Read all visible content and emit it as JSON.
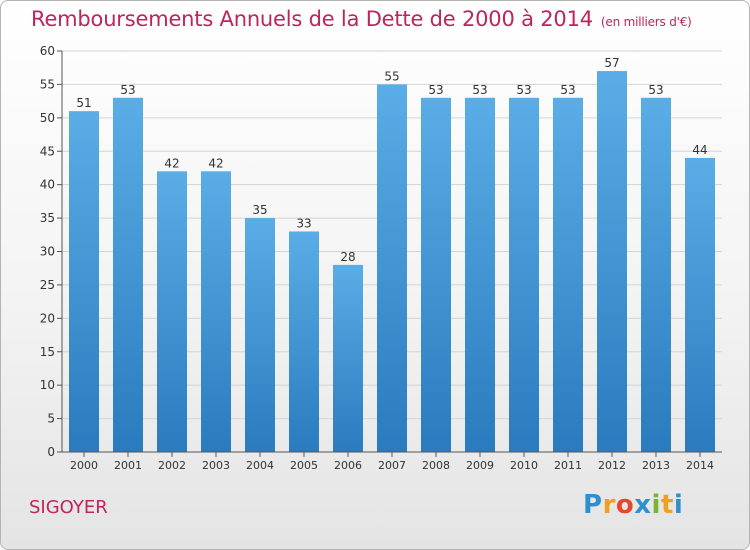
{
  "header": {
    "title": "Remboursements Annuels de la Dette de 2000 à 2014",
    "subtitle": "(en milliers d'€)"
  },
  "footer": {
    "commune": "SIGOYER",
    "brand": {
      "letters": [
        "P",
        "r",
        "o",
        "x",
        "i",
        "t",
        "i"
      ],
      "colors": [
        "#2e8fd0",
        "#f0a020",
        "#e8452c",
        "#2e8fd0",
        "#7ab52e",
        "#f0a020",
        "#2e8fd0"
      ]
    }
  },
  "colors": {
    "bar_light": "#5aade6",
    "bar_dark": "#2a7bbf",
    "grid": "#d4d4d4",
    "axis": "#555555",
    "text": "#333333"
  },
  "chart_data": {
    "type": "bar",
    "title": "Remboursements Annuels de la Dette de 2000 à 2014",
    "unit": "(en milliers d'€)",
    "categories": [
      "2000",
      "2001",
      "2002",
      "2003",
      "2004",
      "2005",
      "2006",
      "2007",
      "2008",
      "2009",
      "2010",
      "2011",
      "2012",
      "2013",
      "2014"
    ],
    "values": [
      51,
      53,
      42,
      42,
      35,
      33,
      28,
      55,
      53,
      53,
      53,
      53,
      57,
      53,
      44
    ],
    "ylim": [
      0,
      60
    ],
    "yticks": [
      0,
      5,
      10,
      15,
      20,
      25,
      30,
      35,
      40,
      45,
      50,
      55,
      60
    ],
    "grid": true,
    "xlabel": "",
    "ylabel": ""
  }
}
